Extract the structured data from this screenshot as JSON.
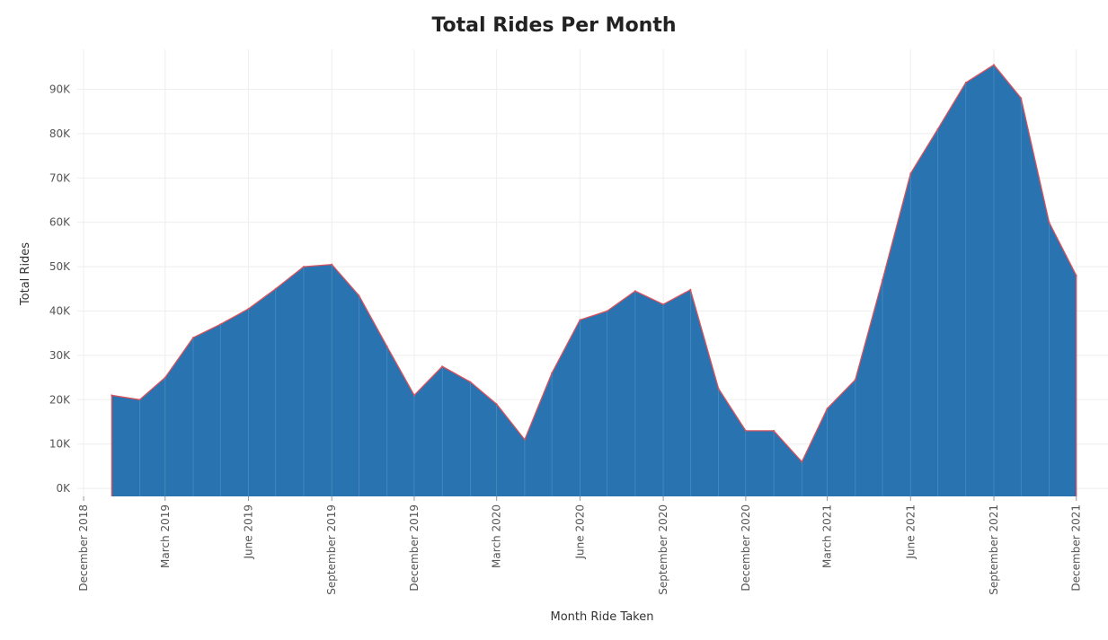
{
  "chart_data": {
    "type": "area",
    "title": "Total Rides Per Month",
    "xlabel": "Month Ride Taken",
    "ylabel": "Total Rides",
    "ylim": [
      -1800,
      99000
    ],
    "xlim": [
      "2018-11-24",
      "2022-01-05"
    ],
    "grid": true,
    "legend": "none",
    "fill_color": "#2873B0",
    "line_color": "#D9535F",
    "x_tick_labels": [
      {
        "date": "2018-12-01",
        "label": "December 2018"
      },
      {
        "date": "2019-03-01",
        "label": "March 2019"
      },
      {
        "date": "2019-06-01",
        "label": "June 2019"
      },
      {
        "date": "2019-09-01",
        "label": "September 2019"
      },
      {
        "date": "2019-12-01",
        "label": "December 2019"
      },
      {
        "date": "2020-03-01",
        "label": "March 2020"
      },
      {
        "date": "2020-06-01",
        "label": "June 2020"
      },
      {
        "date": "2020-09-01",
        "label": "September 2020"
      },
      {
        "date": "2020-12-01",
        "label": "December 2020"
      },
      {
        "date": "2021-03-01",
        "label": "March 2021"
      },
      {
        "date": "2021-06-01",
        "label": "June 2021"
      },
      {
        "date": "2021-09-01",
        "label": "September 2021"
      },
      {
        "date": "2021-12-01",
        "label": "December 2021"
      }
    ],
    "y_ticks": [
      {
        "value": 0,
        "label": "0K"
      },
      {
        "value": 10000,
        "label": "10K"
      },
      {
        "value": 20000,
        "label": "20K"
      },
      {
        "value": 30000,
        "label": "30K"
      },
      {
        "value": 40000,
        "label": "40K"
      },
      {
        "value": 50000,
        "label": "50K"
      },
      {
        "value": 60000,
        "label": "60K"
      },
      {
        "value": 70000,
        "label": "70K"
      },
      {
        "value": 80000,
        "label": "80K"
      },
      {
        "value": 90000,
        "label": "90K"
      }
    ],
    "x": [
      "2019-01-01",
      "2019-02-01",
      "2019-03-01",
      "2019-04-01",
      "2019-05-01",
      "2019-06-01",
      "2019-07-01",
      "2019-08-01",
      "2019-09-01",
      "2019-10-01",
      "2019-11-01",
      "2019-12-01",
      "2020-01-01",
      "2020-02-01",
      "2020-03-01",
      "2020-04-01",
      "2020-05-01",
      "2020-06-01",
      "2020-07-01",
      "2020-08-01",
      "2020-09-01",
      "2020-10-01",
      "2020-11-01",
      "2020-12-01",
      "2021-01-01",
      "2021-02-01",
      "2021-03-01",
      "2021-04-01",
      "2021-05-01",
      "2021-06-01",
      "2021-07-01",
      "2021-08-01",
      "2021-09-01",
      "2021-10-01",
      "2021-11-01",
      "2021-12-01"
    ],
    "series": [
      {
        "values": [
          21000,
          20000,
          25000,
          34000,
          37000,
          40500,
          45000,
          50000,
          50500,
          43500,
          32000,
          21000,
          27500,
          24000,
          19000,
          11000,
          26000,
          38000,
          40000,
          44500,
          41500,
          44800,
          22500,
          13000,
          13000,
          6000,
          18000,
          24500,
          47000,
          71000,
          81000,
          91500,
          95500,
          88000,
          60000,
          48000
        ]
      }
    ]
  }
}
